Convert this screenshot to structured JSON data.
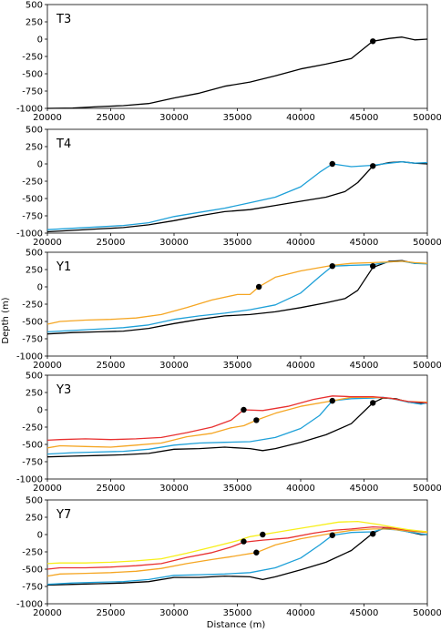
{
  "figure": {
    "xlabel": "Distance (m)",
    "ylabel": "Depth (m)"
  },
  "colors": {
    "black": "#000000",
    "blue": "#1ea0d8",
    "orange": "#f5a623",
    "red": "#e83030",
    "yellow": "#f7ef1a"
  },
  "chart_data": [
    {
      "type": "line",
      "title": "T3",
      "xlim": [
        20000,
        50000
      ],
      "ylim": [
        -1000,
        500
      ],
      "xticks": [
        "20000",
        "25000",
        "30000",
        "35000",
        "40000",
        "45000",
        "50000"
      ],
      "yticks": [
        "500",
        "250",
        "0",
        "-250",
        "-500",
        "-750",
        "-1000"
      ],
      "series": [
        {
          "color": "black",
          "x": [
            20000,
            22000,
            24000,
            26000,
            28000,
            30000,
            32000,
            34000,
            36000,
            38000,
            40000,
            42000,
            44000,
            45700,
            47000,
            48000,
            49000,
            50000
          ],
          "y": [
            -1000,
            -995,
            -975,
            -960,
            -930,
            -850,
            -780,
            -680,
            -620,
            -530,
            -430,
            -360,
            -280,
            -30,
            10,
            30,
            -10,
            0
          ]
        }
      ],
      "markers": [
        {
          "x": 45700,
          "y": -30
        }
      ]
    },
    {
      "type": "line",
      "title": "T4",
      "xlim": [
        20000,
        50000
      ],
      "ylim": [
        -1000,
        500
      ],
      "xticks": [
        "20000",
        "25000",
        "30000",
        "35000",
        "40000",
        "45000",
        "50000"
      ],
      "yticks": [
        "500",
        "250",
        "0",
        "-250",
        "-500",
        "-750",
        "-1000"
      ],
      "series": [
        {
          "color": "black",
          "x": [
            20000,
            22000,
            24000,
            26000,
            28000,
            30000,
            32000,
            34000,
            36000,
            38000,
            40000,
            42000,
            43500,
            44500,
            45700,
            47000,
            48000,
            49000,
            50000
          ],
          "y": [
            -980,
            -960,
            -940,
            -920,
            -880,
            -820,
            -750,
            -690,
            -660,
            -600,
            -540,
            -480,
            -400,
            -270,
            -30,
            20,
            30,
            10,
            0
          ]
        },
        {
          "color": "blue",
          "x": [
            20000,
            22000,
            24000,
            26000,
            28000,
            30000,
            32000,
            34000,
            36000,
            38000,
            40000,
            41500,
            42500,
            44000,
            45700,
            47000,
            48000,
            49000,
            50000
          ],
          "y": [
            -950,
            -930,
            -910,
            -890,
            -850,
            -760,
            -700,
            -640,
            -560,
            -480,
            -330,
            -120,
            0,
            -40,
            -20,
            10,
            30,
            10,
            20
          ]
        }
      ],
      "markers": [
        {
          "x": 42500,
          "y": 0
        },
        {
          "x": 45700,
          "y": -30
        }
      ]
    },
    {
      "type": "line",
      "title": "Y1",
      "xlim": [
        20000,
        50000
      ],
      "ylim": [
        -1000,
        500
      ],
      "xticks": [
        "20000",
        "25000",
        "30000",
        "35000",
        "40000",
        "45000",
        "50000"
      ],
      "yticks": [
        "500",
        "250",
        "0",
        "-250",
        "-500",
        "-750",
        "-1000"
      ],
      "series": [
        {
          "color": "black",
          "x": [
            20000,
            22000,
            24000,
            26000,
            28000,
            30000,
            32000,
            34000,
            36000,
            38000,
            40000,
            42000,
            43500,
            44500,
            45700,
            47000,
            48000,
            49000,
            50000
          ],
          "y": [
            -680,
            -660,
            -650,
            -640,
            -600,
            -530,
            -470,
            -420,
            -400,
            -360,
            -300,
            -230,
            -170,
            -50,
            280,
            370,
            380,
            340,
            340
          ]
        },
        {
          "color": "blue",
          "x": [
            20000,
            22000,
            24000,
            26000,
            28000,
            30000,
            32000,
            34000,
            36000,
            38000,
            40000,
            41500,
            42500,
            44000,
            45700,
            47000,
            48000,
            49000,
            50000
          ],
          "y": [
            -650,
            -630,
            -610,
            -590,
            -550,
            -470,
            -420,
            -380,
            -330,
            -260,
            -90,
            150,
            300,
            310,
            320,
            360,
            370,
            340,
            330
          ]
        },
        {
          "color": "orange",
          "x": [
            20000,
            21000,
            23000,
            25000,
            27000,
            29000,
            31000,
            33000,
            35000,
            36000,
            36700,
            38000,
            40000,
            42500,
            44000,
            45700,
            47000,
            48000,
            49000,
            50000
          ],
          "y": [
            -540,
            -500,
            -480,
            -470,
            -450,
            -400,
            -300,
            -190,
            -110,
            -110,
            0,
            140,
            230,
            310,
            340,
            350,
            360,
            370,
            350,
            340
          ]
        }
      ],
      "markers": [
        {
          "x": 36700,
          "y": 0
        },
        {
          "x": 42500,
          "y": 300
        },
        {
          "x": 45700,
          "y": 300
        }
      ]
    },
    {
      "type": "line",
      "title": "Y3",
      "xlim": [
        20000,
        50000
      ],
      "ylim": [
        -1000,
        500
      ],
      "xticks": [
        "20000",
        "25000",
        "30000",
        "35000",
        "40000",
        "45000",
        "50000"
      ],
      "yticks": [
        "500",
        "250",
        "0",
        "-250",
        "-500",
        "-750",
        "-1000"
      ],
      "series": [
        {
          "color": "black",
          "x": [
            20000,
            22000,
            24000,
            26000,
            28000,
            30000,
            32000,
            34000,
            36000,
            37000,
            38000,
            40000,
            42000,
            44000,
            45700,
            46500,
            47500,
            48500,
            49500,
            50000
          ],
          "y": [
            -680,
            -670,
            -660,
            -650,
            -630,
            -570,
            -560,
            -540,
            -560,
            -590,
            -560,
            -470,
            -360,
            -200,
            100,
            170,
            160,
            110,
            90,
            100
          ]
        },
        {
          "color": "blue",
          "x": [
            20000,
            22000,
            24000,
            26000,
            28000,
            30000,
            32000,
            34000,
            36000,
            38000,
            40000,
            41500,
            42500,
            44000,
            45700,
            46500,
            47500,
            48500,
            49500,
            50000
          ],
          "y": [
            -640,
            -620,
            -610,
            -600,
            -570,
            -510,
            -480,
            -470,
            -460,
            -400,
            -270,
            -80,
            130,
            160,
            170,
            180,
            150,
            110,
            80,
            100
          ]
        },
        {
          "color": "orange",
          "x": [
            20000,
            21000,
            23000,
            25000,
            27000,
            29000,
            31000,
            33000,
            34500,
            35500,
            36500,
            38000,
            40000,
            42500,
            44000,
            45700,
            47000,
            48500,
            50000
          ],
          "y": [
            -550,
            -520,
            -530,
            -540,
            -510,
            -480,
            -390,
            -340,
            -260,
            -230,
            -150,
            -50,
            50,
            130,
            180,
            180,
            170,
            120,
            110
          ]
        },
        {
          "color": "red",
          "x": [
            20000,
            21000,
            23000,
            25000,
            27000,
            29000,
            31000,
            33000,
            34500,
            35500,
            37000,
            39000,
            41000,
            42500,
            44000,
            45700,
            47000,
            48500,
            50000
          ],
          "y": [
            -440,
            -430,
            -420,
            -430,
            -420,
            -400,
            -330,
            -250,
            -150,
            0,
            -10,
            50,
            150,
            200,
            190,
            190,
            170,
            120,
            100
          ]
        }
      ],
      "markers": [
        {
          "x": 35500,
          "y": 0
        },
        {
          "x": 36500,
          "y": -150
        },
        {
          "x": 42500,
          "y": 130
        },
        {
          "x": 45700,
          "y": 100
        }
      ]
    },
    {
      "type": "line",
      "title": "Y7",
      "xlim": [
        20000,
        50000
      ],
      "ylim": [
        -1000,
        500
      ],
      "xticks": [
        "20000",
        "25000",
        "30000",
        "35000",
        "40000",
        "45000",
        "50000"
      ],
      "yticks": [
        "500",
        "250",
        "0",
        "-250",
        "-500",
        "-750",
        "-1000"
      ],
      "series": [
        {
          "color": "black",
          "x": [
            20000,
            22000,
            24000,
            26000,
            28000,
            30000,
            32000,
            34000,
            36000,
            37000,
            38000,
            40000,
            42000,
            44000,
            45700,
            46500,
            47500,
            48500,
            49500,
            50000
          ],
          "y": [
            -730,
            -720,
            -710,
            -700,
            -680,
            -620,
            -620,
            -600,
            -610,
            -650,
            -610,
            -510,
            -400,
            -230,
            20,
            90,
            80,
            40,
            0,
            0
          ]
        },
        {
          "color": "blue",
          "x": [
            20000,
            22000,
            24000,
            26000,
            28000,
            30000,
            32000,
            34000,
            36000,
            38000,
            40000,
            41500,
            42500,
            44000,
            45700,
            46500,
            47500,
            48500,
            49500,
            50000
          ],
          "y": [
            -720,
            -700,
            -690,
            -680,
            -650,
            -590,
            -580,
            -570,
            -550,
            -480,
            -340,
            -150,
            -10,
            30,
            40,
            80,
            70,
            40,
            10,
            0
          ]
        },
        {
          "color": "orange",
          "x": [
            20000,
            21000,
            23000,
            25000,
            27000,
            29000,
            31000,
            33000,
            34500,
            35500,
            36500,
            38000,
            40000,
            42500,
            44000,
            45700,
            47000,
            48500,
            50000
          ],
          "y": [
            -600,
            -570,
            -560,
            -550,
            -530,
            -490,
            -420,
            -360,
            -320,
            -290,
            -260,
            -150,
            -60,
            20,
            60,
            80,
            80,
            50,
            30
          ]
        },
        {
          "color": "red",
          "x": [
            20000,
            21000,
            23000,
            25000,
            27000,
            29000,
            31000,
            33000,
            34500,
            35500,
            37000,
            39000,
            41000,
            42500,
            44000,
            45700,
            47000,
            48500,
            50000
          ],
          "y": [
            -500,
            -480,
            -480,
            -470,
            -450,
            -420,
            -330,
            -260,
            -180,
            -110,
            -80,
            -50,
            20,
            60,
            80,
            110,
            100,
            60,
            40
          ]
        },
        {
          "color": "yellow",
          "x": [
            20000,
            21000,
            23000,
            25000,
            27000,
            29000,
            31000,
            33000,
            35000,
            36000,
            37000,
            39000,
            41000,
            43000,
            44500,
            46000,
            47500,
            48500,
            50000
          ],
          "y": [
            -420,
            -410,
            -410,
            -400,
            -380,
            -350,
            -270,
            -180,
            -90,
            -30,
            0,
            60,
            120,
            180,
            190,
            150,
            100,
            70,
            40
          ]
        }
      ],
      "markers": [
        {
          "x": 35500,
          "y": -100
        },
        {
          "x": 37000,
          "y": 0
        },
        {
          "x": 36500,
          "y": -260
        },
        {
          "x": 42500,
          "y": -10
        },
        {
          "x": 45700,
          "y": 10
        }
      ]
    }
  ]
}
